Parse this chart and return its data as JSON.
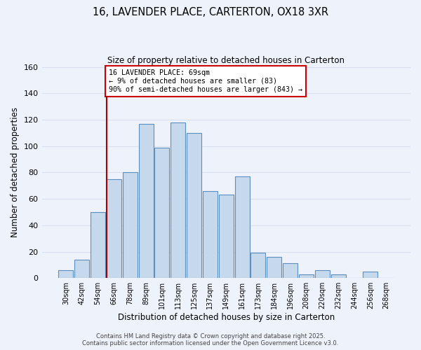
{
  "title": "16, LAVENDER PLACE, CARTERTON, OX18 3XR",
  "subtitle": "Size of property relative to detached houses in Carterton",
  "xlabel": "Distribution of detached houses by size in Carterton",
  "ylabel": "Number of detached properties",
  "bar_color": "#c5d8ec",
  "bar_edge_color": "#5a8fc0",
  "background_color": "#eef2fb",
  "grid_color": "#d8e0f0",
  "categories": [
    "30sqm",
    "42sqm",
    "54sqm",
    "66sqm",
    "78sqm",
    "89sqm",
    "101sqm",
    "113sqm",
    "125sqm",
    "137sqm",
    "149sqm",
    "161sqm",
    "173sqm",
    "184sqm",
    "196sqm",
    "208sqm",
    "220sqm",
    "232sqm",
    "244sqm",
    "256sqm",
    "268sqm"
  ],
  "values": [
    6,
    14,
    50,
    75,
    80,
    117,
    99,
    118,
    110,
    66,
    63,
    77,
    19,
    16,
    11,
    3,
    6,
    3,
    0,
    5,
    0
  ],
  "ylim": [
    0,
    160
  ],
  "yticks": [
    0,
    20,
    40,
    60,
    80,
    100,
    120,
    140,
    160
  ],
  "property_line_color": "#aa0000",
  "annotation_text": "16 LAVENDER PLACE: 69sqm\n← 9% of detached houses are smaller (83)\n90% of semi-detached houses are larger (843) →",
  "annotation_box_color": "#ffffff",
  "annotation_box_edge_color": "#cc0000",
  "footer_line1": "Contains HM Land Registry data © Crown copyright and database right 2025.",
  "footer_line2": "Contains public sector information licensed under the Open Government Licence v3.0."
}
